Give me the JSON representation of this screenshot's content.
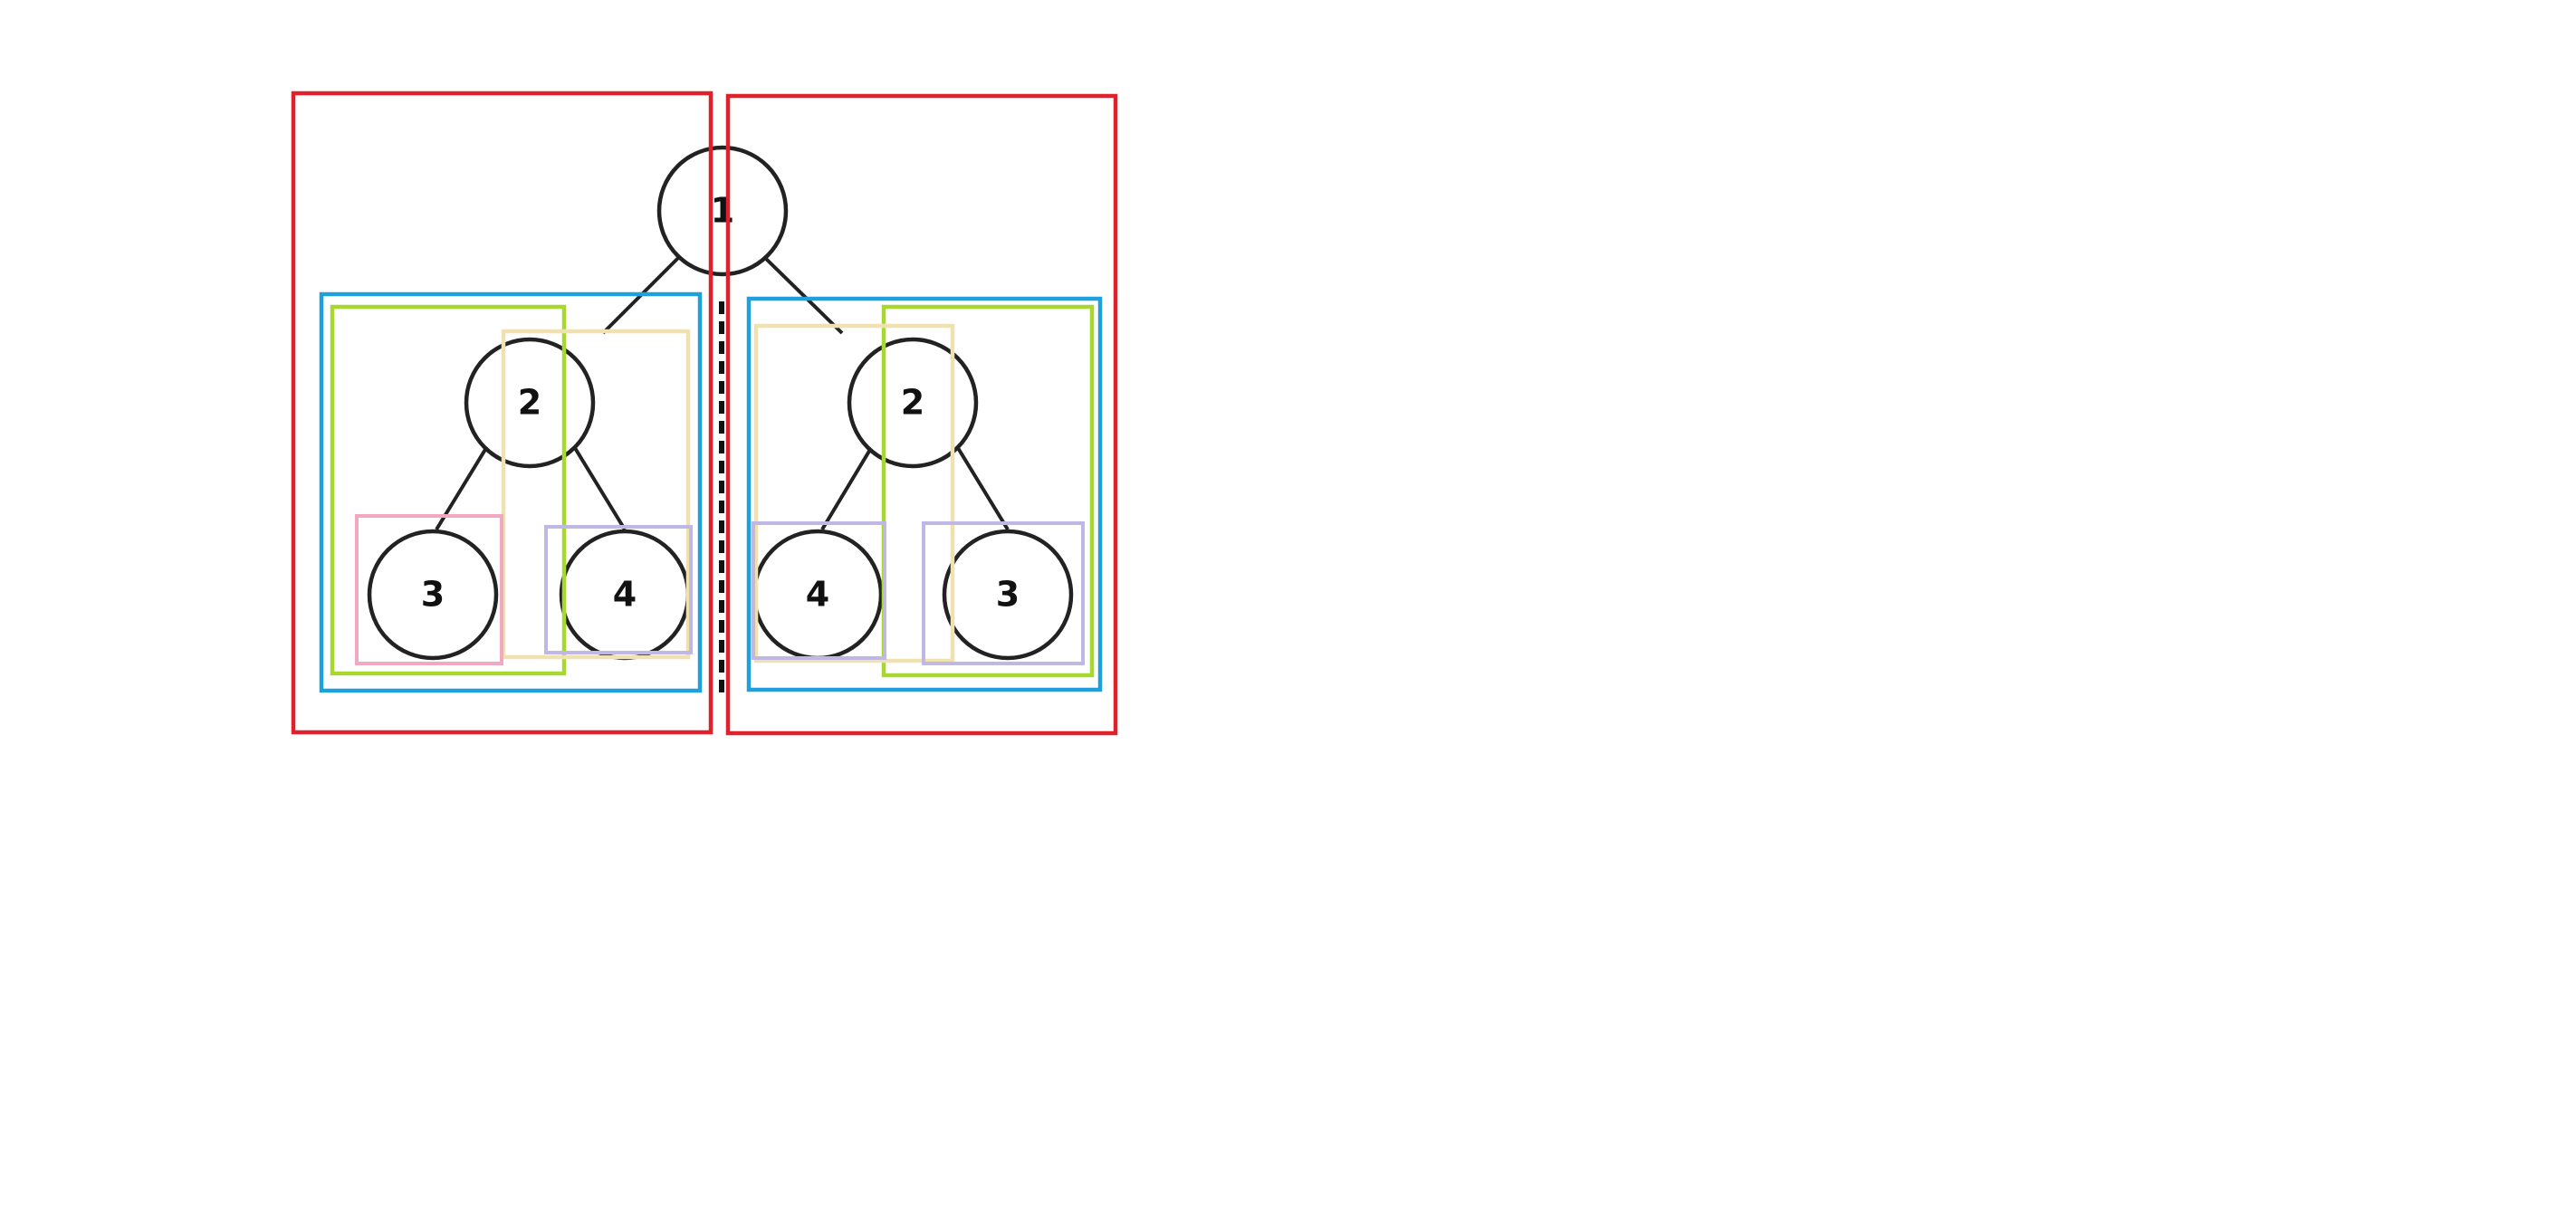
{
  "figure": {
    "description_colors": {
      "red": "#e0202a",
      "blue": "#1ea0dc",
      "green": "#a8d830",
      "yellow": "#f0e2b0",
      "pink": "#f4a8c0",
      "purple": "#c0b8e4",
      "line": "#222222",
      "divider": "#111111"
    },
    "nodes": {
      "root": "1",
      "left_child": "2",
      "left_left_leaf": "3",
      "left_right_leaf": "4",
      "right_child": "2",
      "right_left_leaf": "4",
      "right_right_leaf": "3"
    }
  }
}
